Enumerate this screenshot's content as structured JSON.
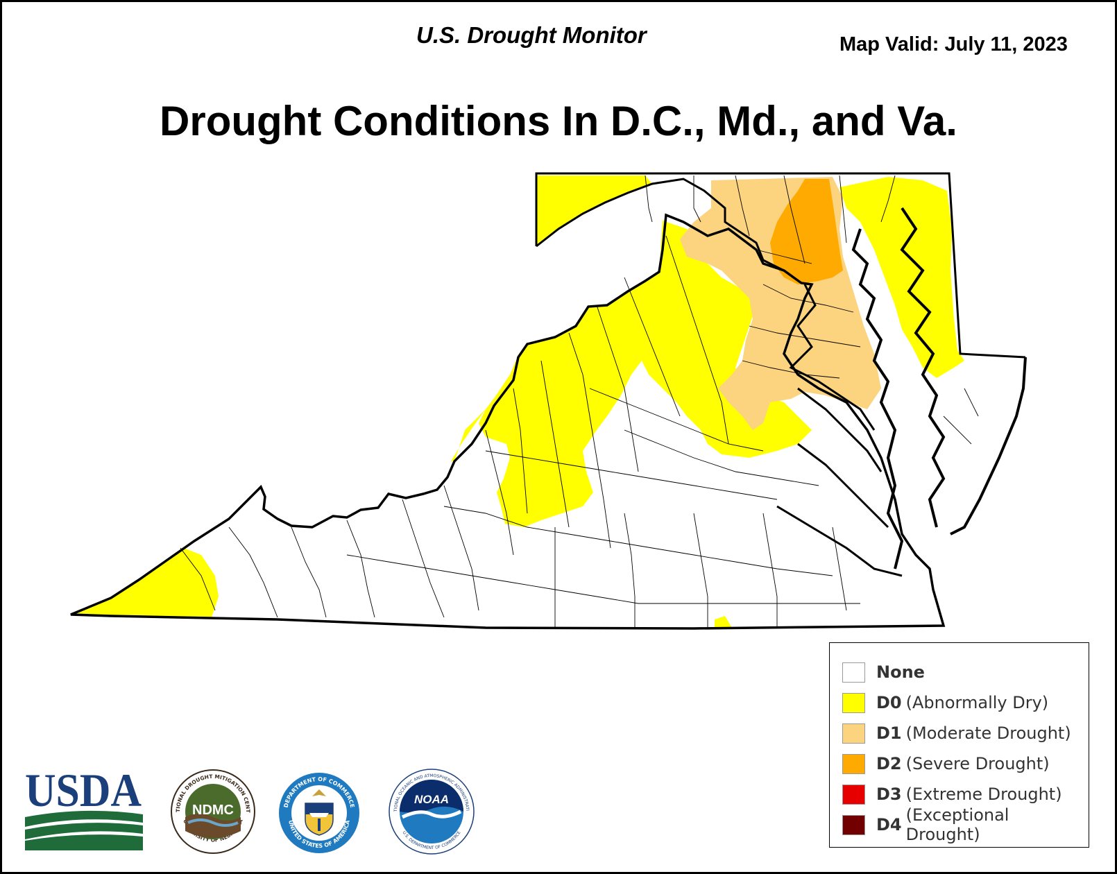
{
  "header": {
    "source_title": "U.S. Drought Monitor",
    "valid_date": "Map Valid: July 11, 2023",
    "main_title": "Drought Conditions In D.C., Md., and Va."
  },
  "legend": {
    "items": [
      {
        "code": "None",
        "desc": "",
        "color": "#ffffff"
      },
      {
        "code": "D0",
        "desc": "(Abnormally Dry)",
        "color": "#ffff00"
      },
      {
        "code": "D1",
        "desc": "(Moderate Drought)",
        "color": "#fcd37f"
      },
      {
        "code": "D2",
        "desc": "(Severe Drought)",
        "color": "#ffaa00"
      },
      {
        "code": "D3",
        "desc": "(Extreme Drought)",
        "color": "#e60000"
      },
      {
        "code": "D4",
        "desc": "(Exceptional Drought)",
        "color": "#730000"
      }
    ]
  },
  "map": {
    "states": [
      "Virginia",
      "Maryland",
      "District of Columbia"
    ],
    "categories_present": [
      "None",
      "D0",
      "D1",
      "D2"
    ]
  },
  "logos": {
    "usda": "USDA",
    "ndmc": "NDMC",
    "ndmc_ring_top": "NATIONAL DROUGHT MITIGATION CENTER",
    "ndmc_ring_bottom": "UNIVERSITY OF NEBRASKA",
    "doc_ring_top": "DEPARTMENT OF COMMERCE",
    "doc_ring_bottom": "UNITED STATES OF AMERICA",
    "noaa": "NOAA",
    "noaa_ring": "NATIONAL OCEANIC AND ATMOSPHERIC ADMINISTRATION",
    "noaa_ring_bottom": "U.S. DEPARTMENT OF COMMERCE"
  }
}
